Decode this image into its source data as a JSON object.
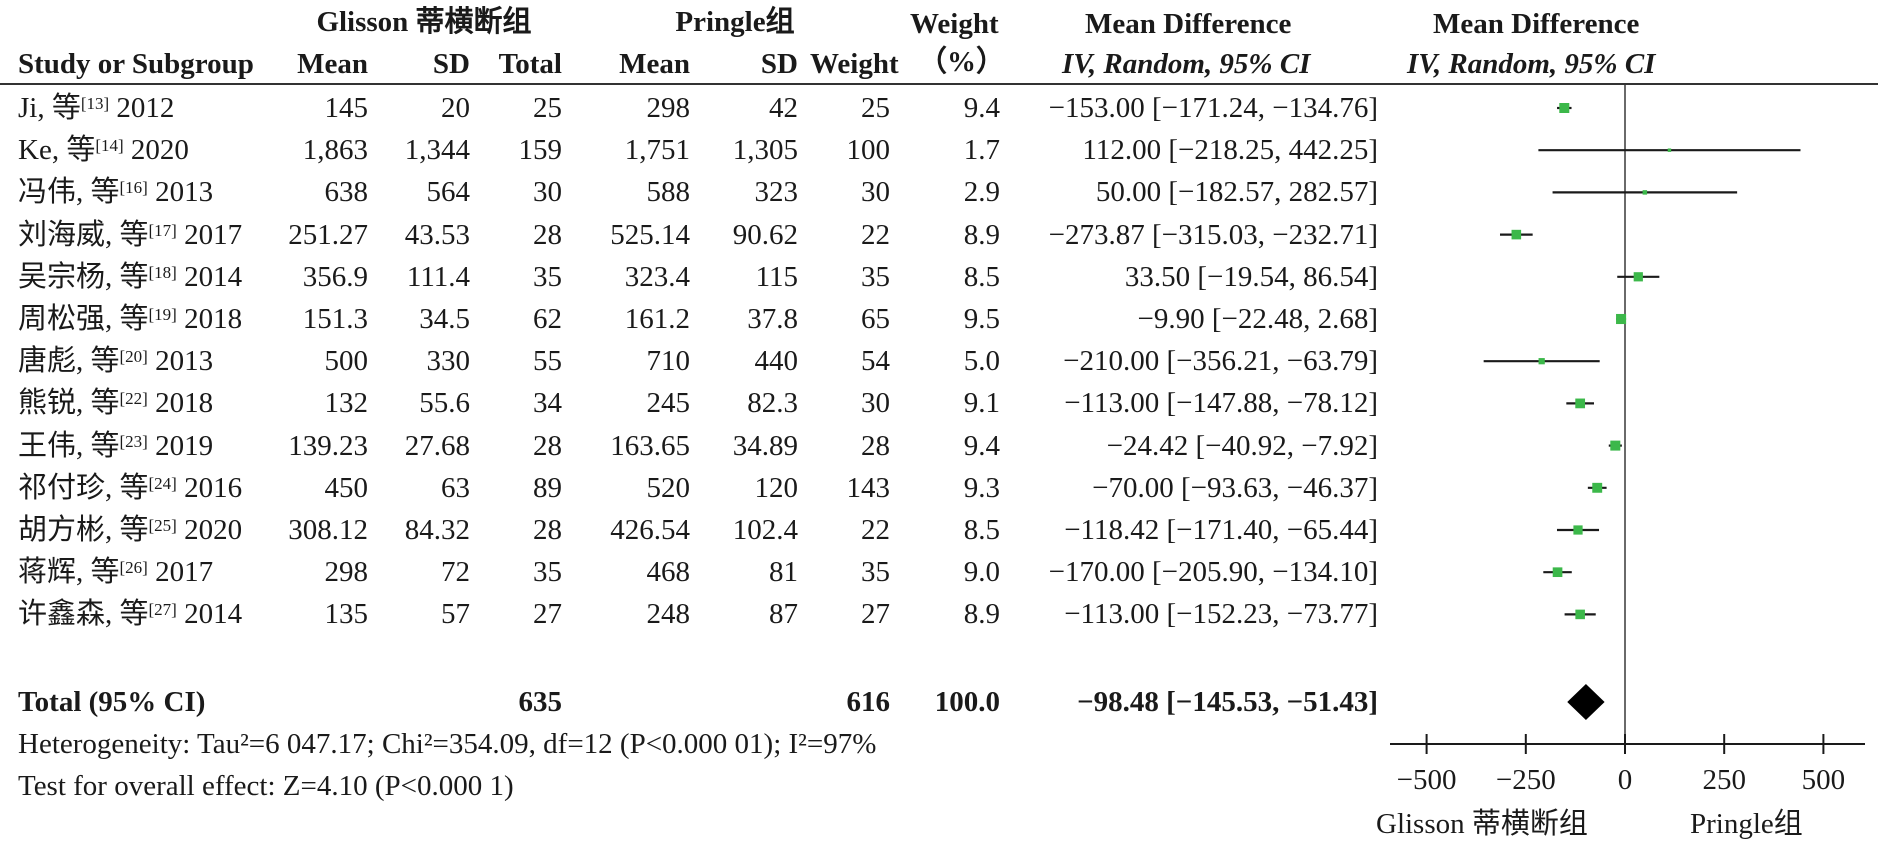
{
  "header": {
    "group1": "Glisson 蒂横断组",
    "group2": "Pringle组",
    "weight_top": "Weight",
    "weight_pct": "（%）",
    "md_top": "Mean Difference",
    "md_sub": "IV, Random, 95% CI",
    "plot_top": "Mean Difference",
    "plot_sub": "IV, Random, 95% CI",
    "study": "Study or Subgroup",
    "mean": "Mean",
    "sd": "SD",
    "total": "Total",
    "weight": "Weight"
  },
  "studies": [
    {
      "name": "Ji, 等",
      "ref": "[13]",
      "year": "2012",
      "m1": "145",
      "sd1": "20",
      "n1": "25",
      "m2": "298",
      "sd2": "42",
      "n2": "25",
      "w": "9.4",
      "ci": "−153.00 [−171.24, −134.76]"
    },
    {
      "name": "Ke, 等",
      "ref": "[14]",
      "year": "2020",
      "m1": "1,863",
      "sd1": "1,344",
      "n1": "159",
      "m2": "1,751",
      "sd2": "1,305",
      "n2": "100",
      "w": "1.7",
      "ci": "112.00 [−218.25, 442.25]"
    },
    {
      "name": "冯伟, 等",
      "ref": "[16]",
      "year": "2013",
      "m1": "638",
      "sd1": "564",
      "n1": "30",
      "m2": "588",
      "sd2": "323",
      "n2": "30",
      "w": "2.9",
      "ci": "50.00 [−182.57, 282.57]"
    },
    {
      "name": "刘海威, 等",
      "ref": "[17]",
      "year": "2017",
      "m1": "251.27",
      "sd1": "43.53",
      "n1": "28",
      "m2": "525.14",
      "sd2": "90.62",
      "n2": "22",
      "w": "8.9",
      "ci": "−273.87 [−315.03, −232.71]"
    },
    {
      "name": "吴宗杨, 等",
      "ref": "[18]",
      "year": "2014",
      "m1": "356.9",
      "sd1": "111.4",
      "n1": "35",
      "m2": "323.4",
      "sd2": "115",
      "n2": "35",
      "w": "8.5",
      "ci": "33.50 [−19.54, 86.54]"
    },
    {
      "name": "周松强, 等",
      "ref": "[19]",
      "year": "2018",
      "m1": "151.3",
      "sd1": "34.5",
      "n1": "62",
      "m2": "161.2",
      "sd2": "37.8",
      "n2": "65",
      "w": "9.5",
      "ci": "−9.90 [−22.48, 2.68]"
    },
    {
      "name": "唐彪, 等",
      "ref": "[20]",
      "year": "2013",
      "m1": "500",
      "sd1": "330",
      "n1": "55",
      "m2": "710",
      "sd2": "440",
      "n2": "54",
      "w": "5.0",
      "ci": "−210.00 [−356.21, −63.79]"
    },
    {
      "name": "熊锐, 等",
      "ref": "[22]",
      "year": "2018",
      "m1": "132",
      "sd1": "55.6",
      "n1": "34",
      "m2": "245",
      "sd2": "82.3",
      "n2": "30",
      "w": "9.1",
      "ci": "−113.00 [−147.88, −78.12]"
    },
    {
      "name": "王伟, 等",
      "ref": "[23]",
      "year": "2019",
      "m1": "139.23",
      "sd1": "27.68",
      "n1": "28",
      "m2": "163.65",
      "sd2": "34.89",
      "n2": "28",
      "w": "9.4",
      "ci": "−24.42 [−40.92, −7.92]"
    },
    {
      "name": "祁付珍, 等",
      "ref": "[24]",
      "year": "2016",
      "m1": "450",
      "sd1": "63",
      "n1": "89",
      "m2": "520",
      "sd2": "120",
      "n2": "143",
      "w": "9.3",
      "ci": "−70.00 [−93.63, −46.37]"
    },
    {
      "name": "胡方彬, 等",
      "ref": "[25]",
      "year": "2020",
      "m1": "308.12",
      "sd1": "84.32",
      "n1": "28",
      "m2": "426.54",
      "sd2": "102.4",
      "n2": "22",
      "w": "8.5",
      "ci": "−118.42 [−171.40, −65.44]"
    },
    {
      "name": "蒋辉, 等",
      "ref": "[26]",
      "year": "2017",
      "m1": "298",
      "sd1": "72",
      "n1": "35",
      "m2": "468",
      "sd2": "81",
      "n2": "35",
      "w": "9.0",
      "ci": "−170.00 [−205.90, −134.10]"
    },
    {
      "name": "许鑫森, 等",
      "ref": "[27]",
      "year": "2014",
      "m1": "135",
      "sd1": "57",
      "n1": "27",
      "m2": "248",
      "sd2": "87",
      "n2": "27",
      "w": "8.9",
      "ci": "−113.00 [−152.23, −73.77]"
    }
  ],
  "total": {
    "label": "Total (95% CI)",
    "n1": "635",
    "n2": "616",
    "w": "100.0",
    "ci": "−98.48 [−145.53, −51.43]"
  },
  "footer": {
    "heterogeneity": "Heterogeneity: Tau²=6 047.17; Chi²=354.09, df=12 (P<0.000 01); I²=97%",
    "overall": "Test for overall effect: Z=4.10 (P<0.000 1)"
  },
  "axis": {
    "left_label": "Glisson 蒂横断组",
    "right_label": "Pringle组"
  },
  "colors": {
    "marker": "#3cb84a",
    "diamond": "#000000",
    "line": "#1a1a1a"
  },
  "chart_data": {
    "type": "forest",
    "x_ticks": [
      -500,
      -250,
      0,
      250,
      500
    ],
    "xlim": [
      -600,
      600
    ],
    "reference_line": 0,
    "studies": [
      {
        "est": -153.0,
        "lo": -171.24,
        "hi": -134.76,
        "weight": 9.4
      },
      {
        "est": 112.0,
        "lo": -218.25,
        "hi": 442.25,
        "weight": 1.7
      },
      {
        "est": 50.0,
        "lo": -182.57,
        "hi": 282.57,
        "weight": 2.9
      },
      {
        "est": -273.87,
        "lo": -315.03,
        "hi": -232.71,
        "weight": 8.9
      },
      {
        "est": 33.5,
        "lo": -19.54,
        "hi": 86.54,
        "weight": 8.5
      },
      {
        "est": -9.9,
        "lo": -22.48,
        "hi": 2.68,
        "weight": 9.5
      },
      {
        "est": -210.0,
        "lo": -356.21,
        "hi": -63.79,
        "weight": 5.0
      },
      {
        "est": -113.0,
        "lo": -147.88,
        "hi": -78.12,
        "weight": 9.1
      },
      {
        "est": -24.42,
        "lo": -40.92,
        "hi": -7.92,
        "weight": 9.4
      },
      {
        "est": -70.0,
        "lo": -93.63,
        "hi": -46.37,
        "weight": 9.3
      },
      {
        "est": -118.42,
        "lo": -171.4,
        "hi": -65.44,
        "weight": 8.5
      },
      {
        "est": -170.0,
        "lo": -205.9,
        "hi": -134.1,
        "weight": 9.0
      },
      {
        "est": -113.0,
        "lo": -152.23,
        "hi": -73.77,
        "weight": 8.9
      }
    ],
    "pooled": {
      "est": -98.48,
      "lo": -145.53,
      "hi": -51.43
    }
  }
}
